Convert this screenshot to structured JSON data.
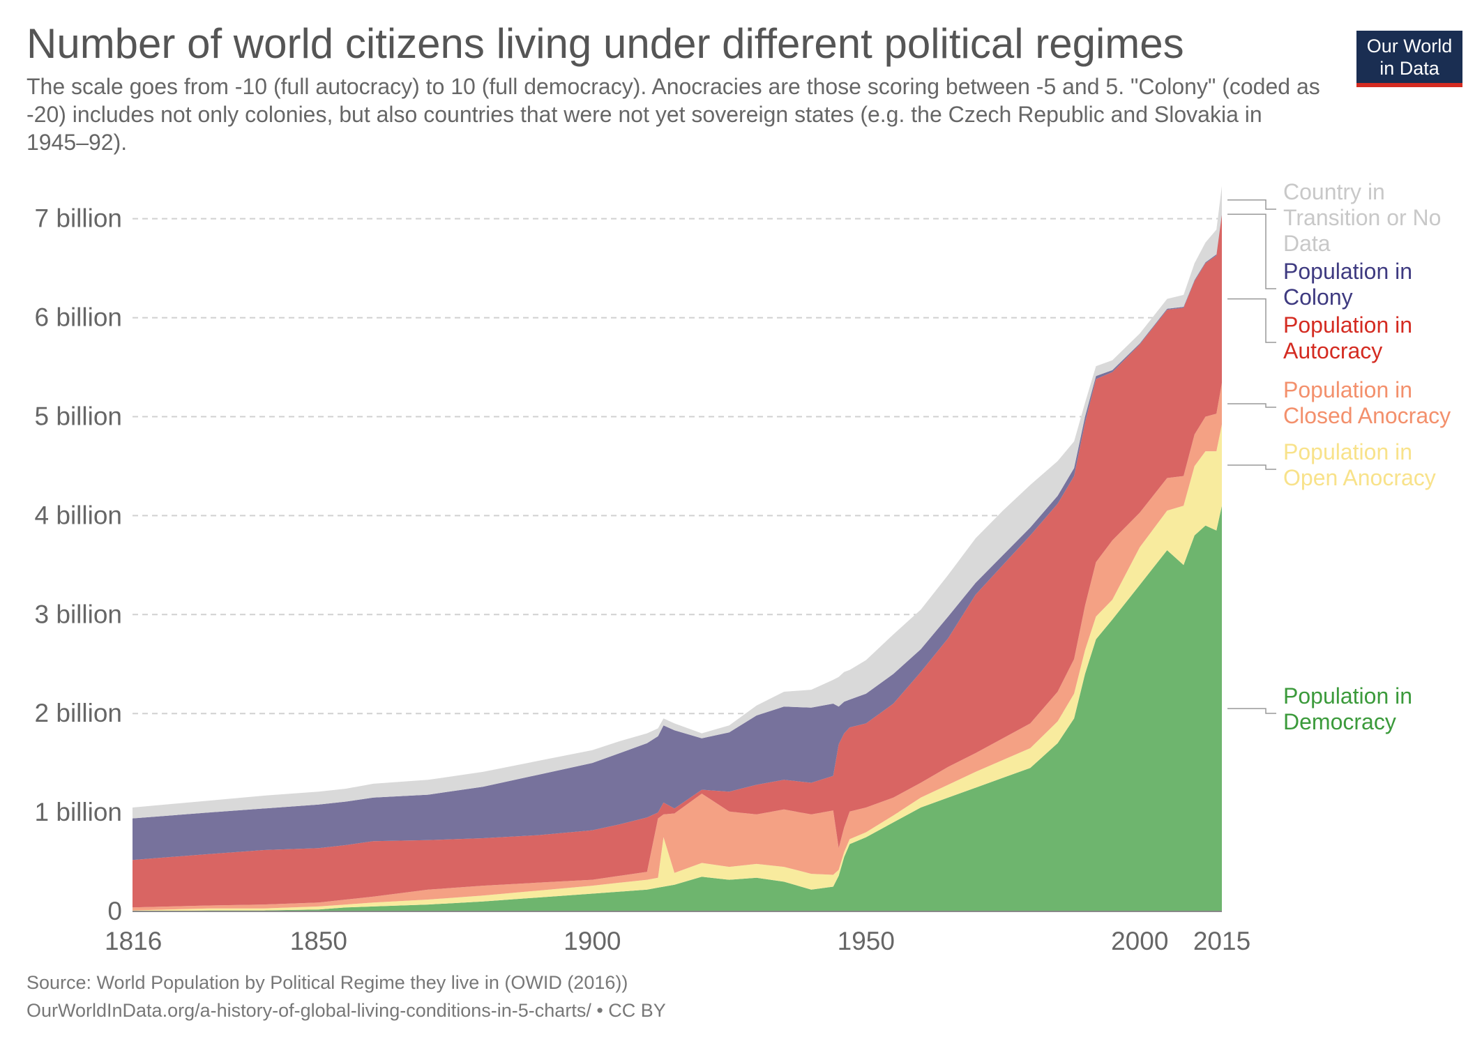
{
  "header": {
    "title": "Number of world citizens living under different political regimes",
    "subtitle": "The scale goes from -10 (full autocracy) to 10 (full democracy). Anocracies are those scoring between -5 and 5. \"Colony\" (coded as -20) includes not only colonies, but also countries that were not yet sovereign states (e.g. the Czech Republic and Slovakia in 1945–92).",
    "logo_line1": "Our World",
    "logo_line2": "in Data"
  },
  "footer": {
    "source": "Source: World Population by Political Regime they live in (OWID (2016))",
    "url": "OurWorldInData.org/a-history-of-global-living-conditions-in-5-charts/ • CC BY"
  },
  "chart_data": {
    "type": "area",
    "stacked": true,
    "grid": true,
    "legend_position": "right",
    "xlim": [
      1816,
      2015
    ],
    "ylim": [
      0,
      7.35
    ],
    "x_ticks": [
      1816,
      1850,
      1900,
      1950,
      2000,
      2015
    ],
    "y_ticks": [
      {
        "value": 0,
        "label": "0"
      },
      {
        "value": 1,
        "label": "1 billion"
      },
      {
        "value": 2,
        "label": "2 billion"
      },
      {
        "value": 3,
        "label": "3 billion"
      },
      {
        "value": 4,
        "label": "4 billion"
      },
      {
        "value": 5,
        "label": "5 billion"
      },
      {
        "value": 6,
        "label": "6 billion"
      },
      {
        "value": 7,
        "label": "7 billion"
      }
    ],
    "x": [
      1816,
      1830,
      1840,
      1850,
      1855,
      1860,
      1870,
      1880,
      1890,
      1900,
      1905,
      1910,
      1912,
      1913,
      1915,
      1920,
      1925,
      1930,
      1935,
      1940,
      1944,
      1945,
      1946,
      1947,
      1950,
      1955,
      1960,
      1965,
      1970,
      1975,
      1980,
      1985,
      1988,
      1990,
      1992,
      1995,
      2000,
      2005,
      2008,
      2010,
      2012,
      2014,
      2015
    ],
    "series": [
      {
        "name": "Population in Democracy",
        "color": "#6eb56e",
        "values": [
          0.0,
          0.01,
          0.01,
          0.02,
          0.04,
          0.05,
          0.07,
          0.1,
          0.14,
          0.18,
          0.2,
          0.22,
          0.24,
          0.25,
          0.27,
          0.35,
          0.32,
          0.34,
          0.3,
          0.22,
          0.25,
          0.36,
          0.55,
          0.68,
          0.75,
          0.9,
          1.05,
          1.15,
          1.25,
          1.35,
          1.45,
          1.7,
          1.95,
          2.4,
          2.75,
          2.95,
          3.3,
          3.65,
          3.5,
          3.8,
          3.9,
          3.85,
          4.1
        ]
      },
      {
        "name": "Population in Open Anocracy",
        "color": "#f8eb9e",
        "values": [
          0.01,
          0.02,
          0.02,
          0.03,
          0.03,
          0.04,
          0.05,
          0.06,
          0.07,
          0.08,
          0.09,
          0.1,
          0.1,
          0.5,
          0.12,
          0.14,
          0.13,
          0.14,
          0.15,
          0.16,
          0.12,
          0.06,
          0.05,
          0.05,
          0.05,
          0.07,
          0.1,
          0.13,
          0.16,
          0.18,
          0.2,
          0.22,
          0.25,
          0.24,
          0.23,
          0.2,
          0.38,
          0.4,
          0.6,
          0.7,
          0.75,
          0.8,
          0.82
        ]
      },
      {
        "name": "Population in Closed Anocracy",
        "color": "#f4a184",
        "values": [
          0.03,
          0.03,
          0.04,
          0.04,
          0.05,
          0.06,
          0.1,
          0.1,
          0.08,
          0.06,
          0.07,
          0.08,
          0.6,
          0.23,
          0.6,
          0.7,
          0.56,
          0.5,
          0.58,
          0.6,
          0.65,
          0.22,
          0.25,
          0.28,
          0.25,
          0.18,
          0.15,
          0.18,
          0.19,
          0.22,
          0.25,
          0.3,
          0.35,
          0.45,
          0.55,
          0.6,
          0.35,
          0.33,
          0.3,
          0.32,
          0.35,
          0.38,
          0.42
        ]
      },
      {
        "name": "Population in Autocracy",
        "color": "#d96563",
        "values": [
          0.48,
          0.52,
          0.55,
          0.55,
          0.55,
          0.56,
          0.5,
          0.48,
          0.48,
          0.5,
          0.52,
          0.55,
          0.06,
          0.12,
          0.05,
          0.04,
          0.2,
          0.3,
          0.3,
          0.32,
          0.35,
          1.05,
          0.95,
          0.85,
          0.85,
          0.95,
          1.12,
          1.3,
          1.6,
          1.75,
          1.9,
          1.9,
          1.85,
          1.85,
          1.85,
          1.7,
          1.7,
          1.7,
          1.7,
          1.55,
          1.55,
          1.6,
          1.7
        ]
      },
      {
        "name": "Population in Colony",
        "color": "#77729c",
        "values": [
          0.42,
          0.42,
          0.42,
          0.44,
          0.44,
          0.44,
          0.46,
          0.52,
          0.61,
          0.68,
          0.72,
          0.75,
          0.77,
          0.78,
          0.79,
          0.52,
          0.6,
          0.7,
          0.74,
          0.76,
          0.73,
          0.38,
          0.32,
          0.28,
          0.3,
          0.3,
          0.23,
          0.22,
          0.12,
          0.1,
          0.08,
          0.08,
          0.08,
          0.06,
          0.03,
          0.02,
          0.01,
          0.01,
          0.01,
          0.01,
          0.01,
          0.01,
          0.01
        ]
      },
      {
        "name": "Country in Transition or No Data",
        "color": "#d9d9d9",
        "values": [
          0.11,
          0.12,
          0.13,
          0.13,
          0.13,
          0.14,
          0.15,
          0.15,
          0.14,
          0.13,
          0.12,
          0.1,
          0.08,
          0.07,
          0.07,
          0.05,
          0.07,
          0.1,
          0.15,
          0.18,
          0.24,
          0.3,
          0.3,
          0.3,
          0.34,
          0.4,
          0.4,
          0.42,
          0.45,
          0.45,
          0.43,
          0.35,
          0.27,
          0.14,
          0.1,
          0.1,
          0.1,
          0.1,
          0.12,
          0.17,
          0.2,
          0.25,
          0.28
        ]
      }
    ],
    "legend": [
      {
        "label": "Country in Transition or No Data",
        "lines": [
          "Country in",
          "Transition or No",
          "Data"
        ],
        "color": "#c8c8c8"
      },
      {
        "label": "Population in Colony",
        "lines": [
          "Population in",
          "Colony"
        ],
        "color": "#3e3a80"
      },
      {
        "label": "Population in Autocracy",
        "lines": [
          "Population in",
          "Autocracy"
        ],
        "color": "#d42b21"
      },
      {
        "label": "Population in Closed Anocracy",
        "lines": [
          "Population in",
          "Closed Anocracy"
        ],
        "color": "#f3906c"
      },
      {
        "label": "Population in Open Anocracy",
        "lines": [
          "Population in",
          "Open Anocracy"
        ],
        "color": "#f8e28a"
      },
      {
        "label": "Population in Democracy",
        "lines": [
          "Population in",
          "Democracy"
        ],
        "color": "#3b9a3b"
      }
    ]
  }
}
